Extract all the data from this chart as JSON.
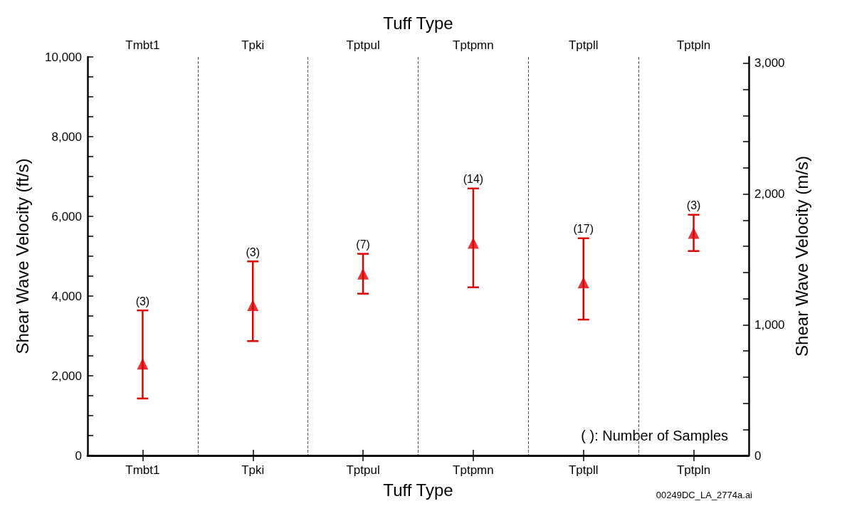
{
  "chart_data": {
    "type": "scatter",
    "xlabel": "Tuff Type",
    "x2label": "Tuff Type",
    "ylabel": "Shear Wave Velocity (ft/s)",
    "y2label": "Shear Wave Velocity (m/s)",
    "categories": [
      "Tmbt1",
      "Tpki",
      "Tptpul",
      "Tptpmn",
      "Tptpll",
      "Tptpln"
    ],
    "series": [
      {
        "color": "#e00000",
        "values": [
          2300,
          3770,
          4560,
          5330,
          4340,
          5580
        ],
        "errors": [
          [
            1430,
            3640
          ],
          [
            2870,
            4870
          ],
          [
            4060,
            5060
          ],
          [
            4220,
            6700
          ],
          [
            3410,
            5450
          ],
          [
            5130,
            6040
          ]
        ]
      }
    ],
    "marker": "triangle",
    "ylim": [
      0,
      10000
    ],
    "yticks": [
      0,
      {
        "value": 500,
        "label": null
      },
      {
        "value": 1000,
        "label": null
      },
      {
        "value": 1500,
        "label": null
      },
      {
        "value": 2000,
        "label": "2,000"
      },
      {
        "value": 2500,
        "label": null
      },
      {
        "value": 3000,
        "label": null
      },
      {
        "value": 3500,
        "label": null
      },
      {
        "value": 4000,
        "label": "4,000"
      },
      {
        "value": 4500,
        "label": null
      },
      {
        "value": 5000,
        "label": null
      },
      {
        "value": 5500,
        "label": null
      },
      {
        "value": 6000,
        "label": "6,000"
      },
      {
        "value": 6500,
        "label": null
      },
      {
        "value": 7000,
        "label": null
      },
      {
        "value": 7500,
        "label": null
      },
      {
        "value": 8000,
        "label": "8,000"
      },
      {
        "value": 8500,
        "label": null
      },
      {
        "value": 9000,
        "label": null
      },
      {
        "value": 9500,
        "label": null
      },
      {
        "value": 10000,
        "label": "10,000"
      }
    ],
    "y2lim": [
      0,
      3048
    ],
    "y2ticks": [
      0,
      {
        "value": 200,
        "label": null
      },
      {
        "value": 400,
        "label": null
      },
      {
        "value": 600,
        "label": null
      },
      {
        "value": 800,
        "label": null
      },
      {
        "value": 1000,
        "label": "1,000"
      },
      {
        "value": 1200,
        "label": null
      },
      {
        "value": 1400,
        "label": null
      },
      {
        "value": 1600,
        "label": null
      },
      {
        "value": 1800,
        "label": null
      },
      {
        "value": 2000,
        "label": "2,000"
      },
      {
        "value": 2200,
        "label": null
      },
      {
        "value": 2400,
        "label": null
      },
      {
        "value": 2600,
        "label": null
      },
      {
        "value": 2800,
        "label": null
      },
      {
        "value": 3000,
        "label": "3,000"
      }
    ],
    "grid": "x",
    "annotations": [
      "( ): Number of Samples",
      "00249DC_LA_2774a.ai",
      {
        "text": "(3)",
        "x": "Tmbt1",
        "y": 3640
      },
      {
        "text": "(3)",
        "x": "Tpki",
        "y": 4870
      },
      {
        "text": "(7)",
        "x": "Tptpul",
        "y": 5060
      },
      {
        "text": "(14)",
        "x": "Tptpmn",
        "y": 6700
      },
      {
        "text": "(17)",
        "x": "Tptpll",
        "y": 5450
      },
      {
        "text": "(3)",
        "x": "Tptpln",
        "y": 6040
      }
    ]
  }
}
